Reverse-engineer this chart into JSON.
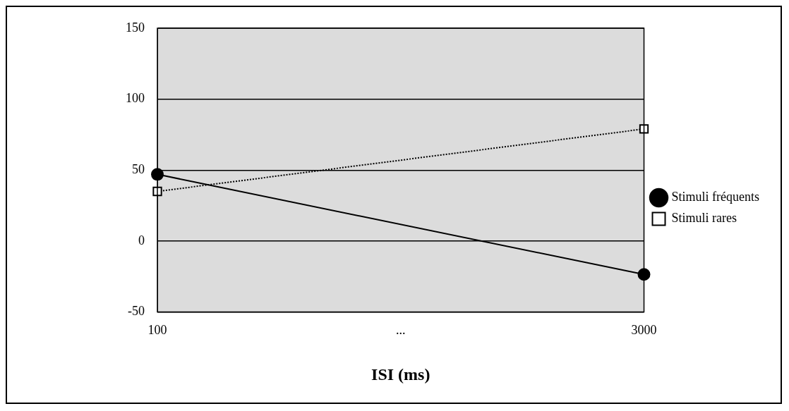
{
  "chart_data": {
    "type": "line",
    "xlabel": "ISI (ms)",
    "categories": [
      "100",
      "...",
      "3000"
    ],
    "series": [
      {
        "name": "Stimuli fréquents",
        "color": "#000000",
        "values": [
          47,
          null,
          -23.5
        ],
        "marker": "circle",
        "line_style": "solid"
      },
      {
        "name": "Stimuli rares",
        "color": "#000000",
        "values": [
          35,
          null,
          79
        ],
        "marker": "square",
        "line_style": "dotted"
      }
    ],
    "ylim": [
      -50,
      150
    ],
    "yticks": [
      -50,
      0,
      50,
      100,
      150
    ],
    "grid": "y",
    "legend": "right"
  }
}
